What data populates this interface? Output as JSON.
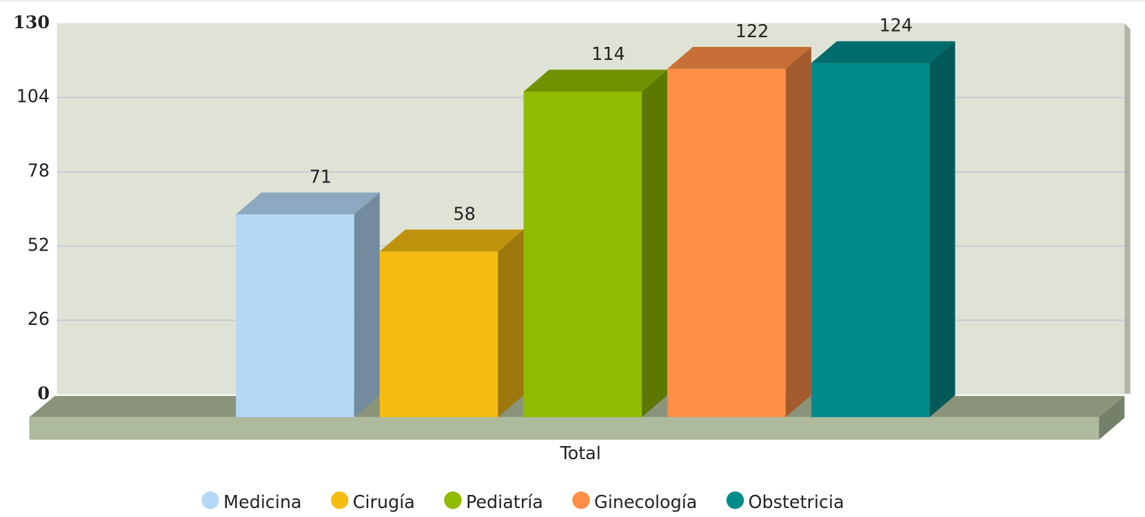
{
  "chart_data": {
    "type": "bar3d",
    "categories": [
      "Total"
    ],
    "series": [
      {
        "name": "Medicina",
        "color": "#b3d9f7",
        "values": [
          71
        ]
      },
      {
        "name": "Cirugía",
        "color": "#f6bc12",
        "values": [
          58
        ]
      },
      {
        "name": "Pediatría",
        "color": "#8fbb00",
        "values": [
          114
        ]
      },
      {
        "name": "Ginecología",
        "color": "#ff8e46",
        "values": [
          122
        ]
      },
      {
        "name": "Obstetricia",
        "color": "#008b8b",
        "values": [
          124
        ]
      }
    ],
    "ylim": [
      0,
      130
    ],
    "yticks": [
      0,
      26,
      52,
      78,
      104,
      130
    ],
    "grid": true,
    "legend": "bottom"
  }
}
